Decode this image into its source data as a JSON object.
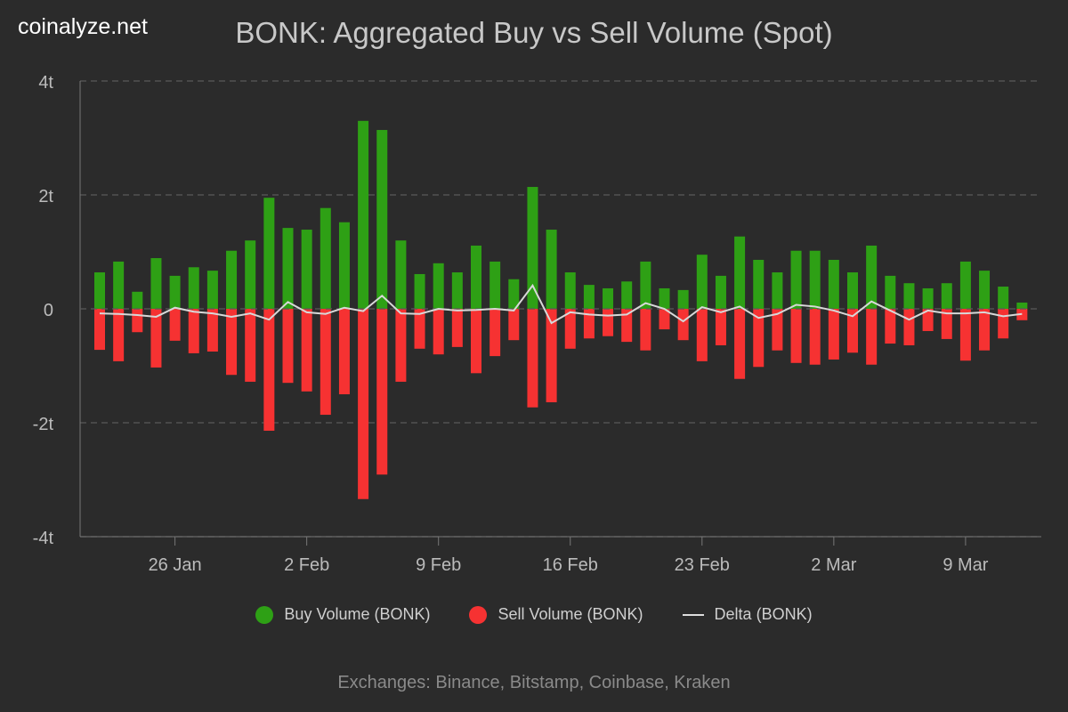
{
  "brand": "coinalyze.net",
  "footer": "Exchanges: Binance, Bitstamp, Coinbase, Kraken",
  "colors": {
    "buy": "#2ea015",
    "sell": "#f63232",
    "delta": "#d8d8d8",
    "background": "#2b2b2b",
    "grid": "#5a5a5a"
  },
  "chart_data": {
    "type": "bar",
    "title": "BONK: Aggregated Buy vs Sell Volume (Spot)",
    "start_date": "2025-01-22",
    "x_ticks": [
      "26 Jan",
      "2 Feb",
      "9 Feb",
      "16 Feb",
      "23 Feb",
      "2 Mar",
      "9 Mar"
    ],
    "y_ticks": [
      "4t",
      "2t",
      "0",
      "-2t",
      "-4t"
    ],
    "ylim": [
      -4,
      4
    ],
    "unit": "t",
    "grid": true,
    "legend": "bottom",
    "series": [
      {
        "name": "Buy Volume (BONK)",
        "type": "bar",
        "values": [
          0.64,
          0.83,
          0.3,
          0.89,
          0.58,
          0.73,
          0.67,
          1.02,
          1.2,
          1.95,
          1.42,
          1.39,
          1.77,
          1.52,
          3.3,
          3.14,
          1.2,
          0.61,
          0.8,
          0.64,
          1.11,
          0.83,
          0.52,
          2.14,
          1.39,
          0.64,
          0.42,
          0.36,
          0.48,
          0.83,
          0.36,
          0.33,
          0.95,
          0.58,
          1.27,
          0.86,
          0.64,
          1.02,
          1.02,
          0.86,
          0.64,
          1.11,
          0.58,
          0.45,
          0.36,
          0.45,
          0.83,
          0.67,
          0.39,
          0.11
        ]
      },
      {
        "name": "Sell Volume (BONK)",
        "type": "bar",
        "values": [
          -0.72,
          -0.92,
          -0.41,
          -1.03,
          -0.56,
          -0.78,
          -0.75,
          -1.16,
          -1.28,
          -2.14,
          -1.3,
          -1.45,
          -1.86,
          -1.5,
          -3.34,
          -2.91,
          -1.28,
          -0.7,
          -0.8,
          -0.67,
          -1.13,
          -0.83,
          -0.55,
          -1.73,
          -1.64,
          -0.7,
          -0.52,
          -0.48,
          -0.58,
          -0.73,
          -0.36,
          -0.55,
          -0.92,
          -0.64,
          -1.23,
          -1.02,
          -0.73,
          -0.95,
          -0.98,
          -0.89,
          -0.77,
          -0.98,
          -0.61,
          -0.64,
          -0.39,
          -0.53,
          -0.91,
          -0.73,
          -0.52,
          -0.2
        ]
      },
      {
        "name": "Delta (BONK)",
        "type": "line",
        "values": [
          -0.08,
          -0.09,
          -0.11,
          -0.14,
          0.02,
          -0.05,
          -0.08,
          -0.14,
          -0.08,
          -0.19,
          0.12,
          -0.06,
          -0.09,
          0.02,
          -0.04,
          0.23,
          -0.08,
          -0.09,
          0.0,
          -0.03,
          -0.02,
          0.0,
          -0.03,
          0.41,
          -0.25,
          -0.06,
          -0.1,
          -0.12,
          -0.1,
          0.1,
          0.0,
          -0.22,
          0.03,
          -0.06,
          0.04,
          -0.16,
          -0.09,
          0.07,
          0.04,
          -0.03,
          -0.13,
          0.13,
          -0.03,
          -0.19,
          -0.03,
          -0.08,
          -0.08,
          -0.06,
          -0.13,
          -0.09
        ]
      }
    ]
  }
}
